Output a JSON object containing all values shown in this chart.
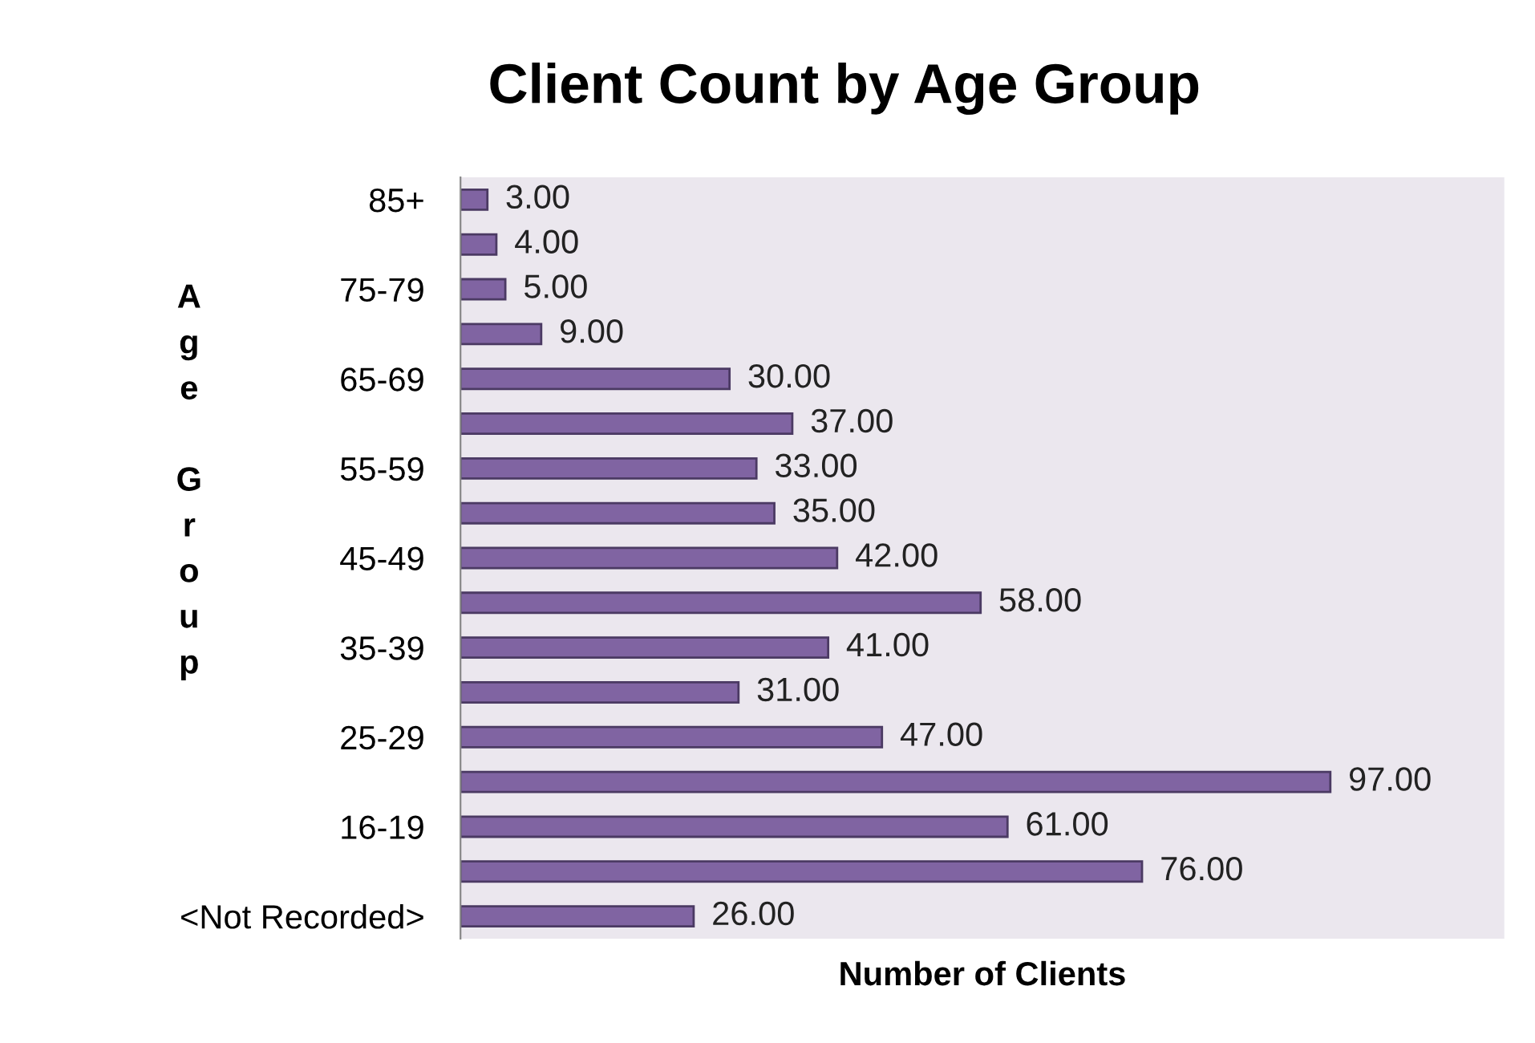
{
  "chart_data": {
    "type": "bar",
    "orientation": "horizontal",
    "title": "Client Count by Age Group",
    "xlabel": "Number of Clients",
    "ylabel": "Age Group",
    "categories": [
      "85+",
      null,
      "75-79",
      null,
      "65-69",
      null,
      "55-59",
      null,
      "45-49",
      null,
      "35-39",
      null,
      "25-29",
      null,
      "16-19",
      null,
      "<Not Recorded>"
    ],
    "values": [
      3,
      4,
      5,
      9,
      30,
      37,
      33,
      35,
      42,
      58,
      41,
      31,
      47,
      97,
      61,
      76,
      26
    ],
    "value_labels": [
      "3.00",
      "4.00",
      "5.00",
      "9.00",
      "30.00",
      "37.00",
      "33.00",
      "35.00",
      "42.00",
      "58.00",
      "41.00",
      "31.00",
      "47.00",
      "97.00",
      "61.00",
      "76.00",
      "26.00"
    ],
    "color": "#8064a2",
    "grid": false,
    "legend": false
  }
}
